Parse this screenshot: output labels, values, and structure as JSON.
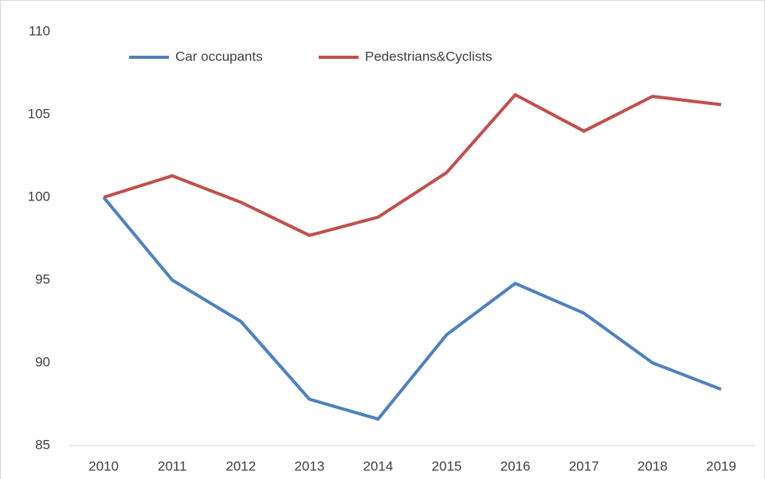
{
  "chart_data": {
    "type": "line",
    "categories": [
      "2010",
      "2011",
      "2012",
      "2013",
      "2014",
      "2015",
      "2016",
      "2017",
      "2018",
      "2019"
    ],
    "series": [
      {
        "name": "Car occupants",
        "color": "#4f81bd",
        "values": [
          100,
          95.0,
          92.5,
          87.8,
          86.6,
          91.7,
          94.8,
          93.0,
          90.0,
          88.4
        ]
      },
      {
        "name": "Pedestrians&Cyclists",
        "color": "#c0504d",
        "values": [
          100,
          101.3,
          99.7,
          97.7,
          98.8,
          101.5,
          106.2,
          104.0,
          106.1,
          105.6
        ]
      }
    ],
    "ylim": [
      85,
      110
    ],
    "yticks": [
      85,
      90,
      95,
      100,
      105,
      110
    ],
    "grid": false
  }
}
